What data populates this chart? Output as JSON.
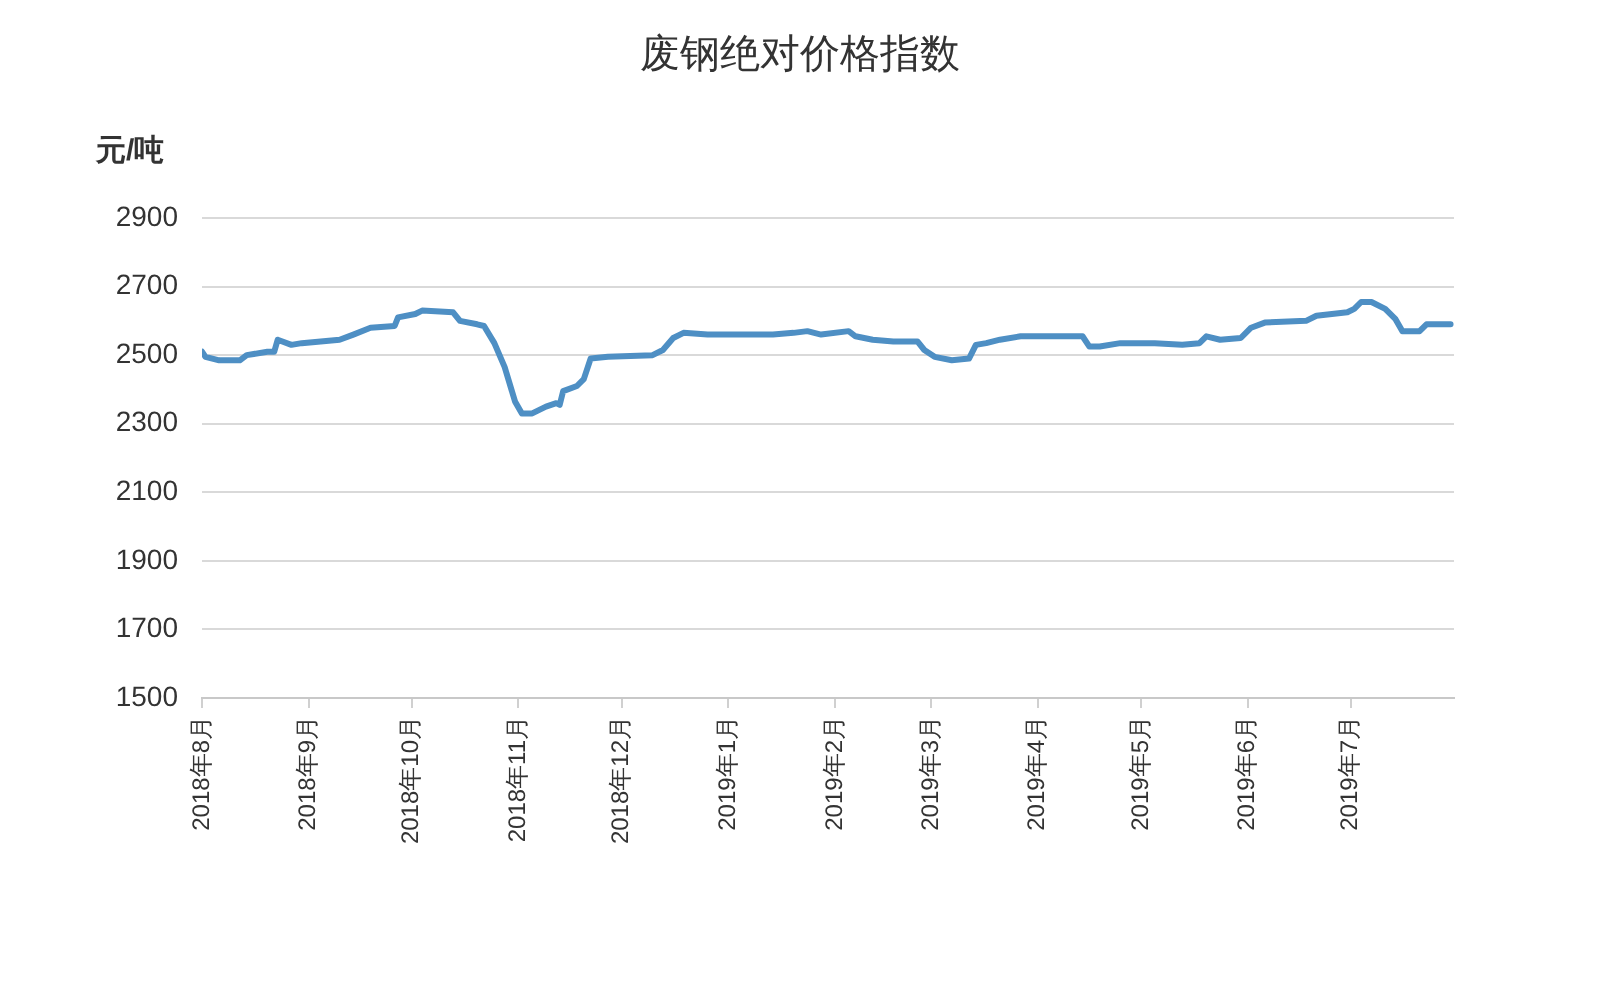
{
  "chart_data": {
    "type": "line",
    "title": "废钢绝对价格指数",
    "ylabel": "元/吨",
    "x": [
      "2018-08-01",
      "2018-08-02",
      "2018-08-06",
      "2018-08-12",
      "2018-08-14",
      "2018-08-20",
      "2018-08-22",
      "2018-08-23",
      "2018-08-27",
      "2018-08-30",
      "2018-09-10",
      "2018-09-14",
      "2018-09-19",
      "2018-09-26",
      "2018-09-27",
      "2018-10-02",
      "2018-10-04",
      "2018-10-13",
      "2018-10-15",
      "2018-10-20",
      "2018-10-22",
      "2018-10-25",
      "2018-10-28",
      "2018-10-31",
      "2018-11-02",
      "2018-11-05",
      "2018-11-09",
      "2018-11-12",
      "2018-11-13",
      "2018-11-14",
      "2018-11-18",
      "2018-11-20",
      "2018-11-22",
      "2018-11-27",
      "2018-12-10",
      "2018-12-13",
      "2018-12-16",
      "2018-12-19",
      "2018-12-26",
      "2019-01-14",
      "2019-01-20",
      "2019-01-24",
      "2019-01-28",
      "2019-02-05",
      "2019-02-07",
      "2019-02-12",
      "2019-02-18",
      "2019-02-25",
      "2019-02-27",
      "2019-03-02",
      "2019-03-07",
      "2019-03-12",
      "2019-03-14",
      "2019-03-17",
      "2019-03-21",
      "2019-03-27",
      "2019-04-14",
      "2019-04-16",
      "2019-04-19",
      "2019-04-25",
      "2019-05-05",
      "2019-05-13",
      "2019-05-18",
      "2019-05-20",
      "2019-05-24",
      "2019-05-30",
      "2019-06-02",
      "2019-06-06",
      "2019-06-18",
      "2019-06-21",
      "2019-06-30",
      "2019-07-02",
      "2019-07-04",
      "2019-07-07",
      "2019-07-11",
      "2019-07-14",
      "2019-07-16",
      "2019-07-21",
      "2019-07-23",
      "2019-07-30"
    ],
    "values": [
      2510,
      2495,
      2485,
      2485,
      2500,
      2510,
      2510,
      2545,
      2530,
      2535,
      2545,
      2560,
      2580,
      2585,
      2610,
      2620,
      2630,
      2625,
      2600,
      2590,
      2585,
      2535,
      2465,
      2365,
      2330,
      2330,
      2350,
      2360,
      2355,
      2395,
      2410,
      2430,
      2490,
      2495,
      2500,
      2515,
      2550,
      2565,
      2560,
      2560,
      2565,
      2570,
      2560,
      2570,
      2555,
      2545,
      2540,
      2540,
      2515,
      2495,
      2485,
      2490,
      2530,
      2535,
      2545,
      2555,
      2555,
      2525,
      2525,
      2535,
      2535,
      2530,
      2535,
      2555,
      2545,
      2550,
      2580,
      2595,
      2600,
      2615,
      2625,
      2635,
      2655,
      2655,
      2635,
      2605,
      2570,
      2570,
      2590,
      2590
    ],
    "color": "#4e8fc4",
    "xlim": [
      "2018-08-01",
      "2019-07-31"
    ],
    "xticks": [
      {
        "value": "2018-08",
        "label": "2018年8月"
      },
      {
        "value": "2018-09",
        "label": "2018年9月"
      },
      {
        "value": "2018-10",
        "label": "2018年10月"
      },
      {
        "value": "2018-11",
        "label": "2018年11月"
      },
      {
        "value": "2018-12",
        "label": "2018年12月"
      },
      {
        "value": "2019-01",
        "label": "2019年1月"
      },
      {
        "value": "2019-02",
        "label": "2019年2月"
      },
      {
        "value": "2019-03",
        "label": "2019年3月"
      },
      {
        "value": "2019-04",
        "label": "2019年4月"
      },
      {
        "value": "2019-05",
        "label": "2019年5月"
      },
      {
        "value": "2019-06",
        "label": "2019年6月"
      },
      {
        "value": "2019-07",
        "label": "2019年7月"
      }
    ],
    "ylim": [
      1500,
      2900
    ],
    "yticks": [
      1500,
      1700,
      1900,
      2100,
      2300,
      2500,
      2700,
      2900
    ],
    "grid": "y"
  }
}
